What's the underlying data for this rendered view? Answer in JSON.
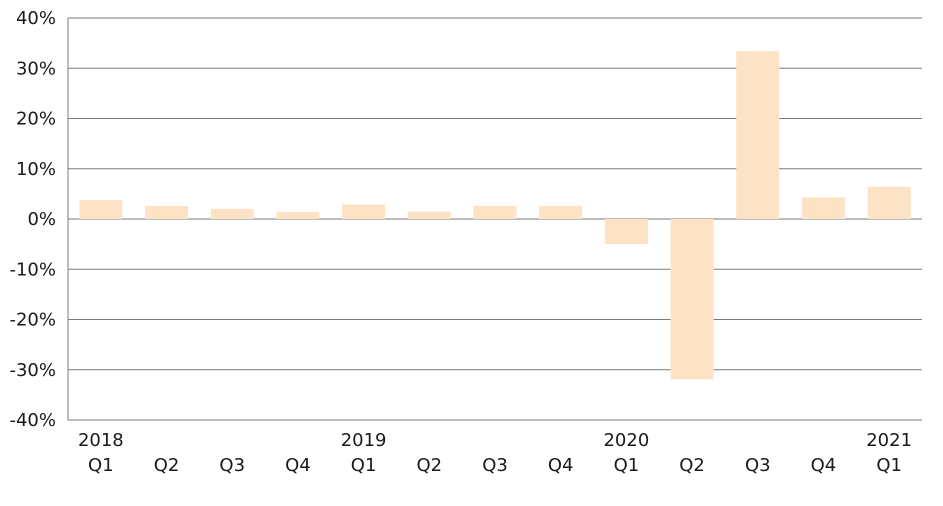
{
  "chart_data": {
    "type": "bar",
    "title": "",
    "xlabel": "",
    "ylabel": "",
    "categories": [
      "Q1",
      "Q2",
      "Q3",
      "Q4",
      "Q1",
      "Q2",
      "Q3",
      "Q4",
      "Q1",
      "Q2",
      "Q3",
      "Q4",
      "Q1"
    ],
    "year_labels": [
      "2018",
      "",
      "",
      "",
      "2019",
      "",
      "",
      "",
      "2020",
      "",
      "",
      "",
      "2021"
    ],
    "values": [
      3.8,
      2.6,
      2.0,
      1.4,
      2.9,
      1.5,
      2.6,
      2.6,
      -5.0,
      -31.9,
      33.4,
      4.3,
      6.4
    ],
    "ylim": [
      -40,
      40
    ],
    "yticks": [
      40,
      30,
      20,
      10,
      0,
      -10,
      -20,
      -30,
      -40
    ],
    "ytick_labels": [
      "40%",
      "30%",
      "20%",
      "10%",
      "0%",
      "-10%",
      "-20%",
      "-30%",
      "-40%"
    ],
    "grid": true,
    "colors": {
      "bar": "#fde3c5",
      "grid": "#7a7a7a",
      "axis": "#7a7a7a",
      "text": "#1a1a1a"
    }
  }
}
